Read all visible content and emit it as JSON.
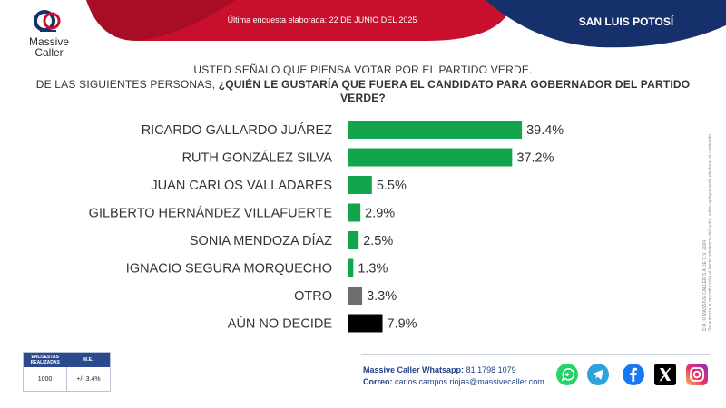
{
  "header": {
    "banner_text": "Última encuesta elaborada: 22 DE JUNIO DEL 2025",
    "state": "SAN LUIS POTOSÍ",
    "logo_line1": "Massive",
    "logo_line2": "Caller"
  },
  "question": {
    "line1": "USTED SEÑALO QUE PIENSA VOTAR POR EL PARTIDO VERDE.",
    "line2_prefix": "DE LAS SIGUIENTES PERSONAS, ",
    "line2_bold": "¿QUIÉN LE GUSTARÍA QUE FUERA EL CANDIDATO PARA GOBERNADOR DEL PARTIDO VERDE?"
  },
  "colors": {
    "green": "#12a54b",
    "grey": "#6e6e6e",
    "black": "#000000",
    "banner_red": "#c8102e",
    "banner_navy": "#16306b",
    "table_header": "#2a4a8c"
  },
  "chart_data": {
    "type": "bar",
    "orientation": "horizontal",
    "categories": [
      "RICARDO GALLARDO JUÁREZ",
      "RUTH GONZÁLEZ SILVA",
      "JUAN CARLOS VALLADARES",
      "GILBERTO HERNÁNDEZ VILLAFUERTE",
      "SONIA MENDOZA DÍAZ",
      "IGNACIO SEGURA MORQUECHO",
      "OTRO",
      "AÚN NO DECIDE"
    ],
    "values": [
      39.4,
      37.2,
      5.5,
      2.9,
      2.5,
      1.3,
      3.3,
      7.9
    ],
    "value_labels": [
      "39.4%",
      "37.2%",
      "5.5%",
      "2.9%",
      "2.5%",
      "1.3%",
      "3.3%",
      "7.9%"
    ],
    "bar_colors": [
      "#12a54b",
      "#12a54b",
      "#12a54b",
      "#12a54b",
      "#12a54b",
      "#12a54b",
      "#6e6e6e",
      "#000000"
    ],
    "xlim": [
      0,
      40
    ],
    "grid": false
  },
  "side_note": {
    "line1": "D.R. © MASSIVE CALLER S.A DE C.V. 2024",
    "line2": "Se autoriza la reproducción al hacer referencia del autor, salvo apliqué veda electoral al contenido."
  },
  "table": {
    "h1": "ENCUESTAS REALIZADAS",
    "h2": "M.E.",
    "v1": "1000",
    "v2": "+/- 3.4%"
  },
  "contact": {
    "whatsapp_label": "Massive Caller Whatsapp:",
    "whatsapp_number": "81 1798 1079",
    "email_label": "Correo:",
    "email": "carlos.campos.riojas@massivecaller.com"
  },
  "social": [
    "whatsapp-icon",
    "telegram-icon",
    "facebook-icon",
    "x-icon",
    "instagram-icon"
  ]
}
